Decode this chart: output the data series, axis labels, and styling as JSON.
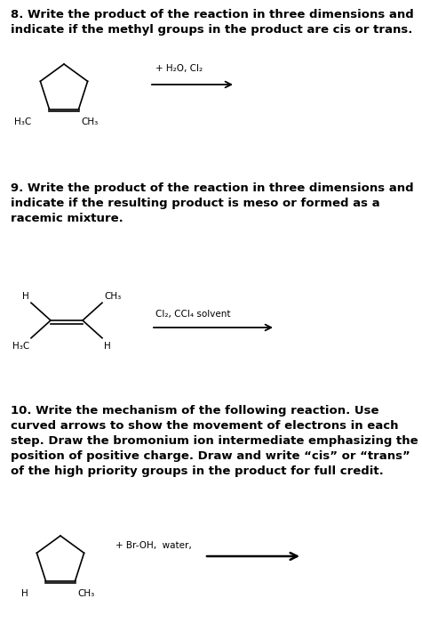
{
  "bg_color": "#ffffff",
  "text_color": "#000000",
  "q8_title": "8. Write the product of the reaction in three dimensions and\nindicate if the methyl groups in the product are cis or trans.",
  "q9_title": "9. Write the product of the reaction in three dimensions and\nindicate if the resulting product is meso or formed as a\nracemic mixture.",
  "q10_title": "10. Write the mechanism of the following reaction. Use\ncurved arrows to show the movement of electrons in each\nstep. Draw the bromonium ion intermediate emphasizing the\nposition of positive charge. Draw and write “cis” or “trans”\nof the high priority groups in the product for full credit.",
  "q8_reagent": "+ H₂O, Cl₂",
  "q9_reagent": "Cl₂, CCl₄ solvent",
  "q10_reagent": "+ Br-OH,  water,",
  "title_fontsize": 9.5,
  "label_fontsize": 7.5,
  "reagent_fontsize": 7.5,
  "lw": 1.2
}
